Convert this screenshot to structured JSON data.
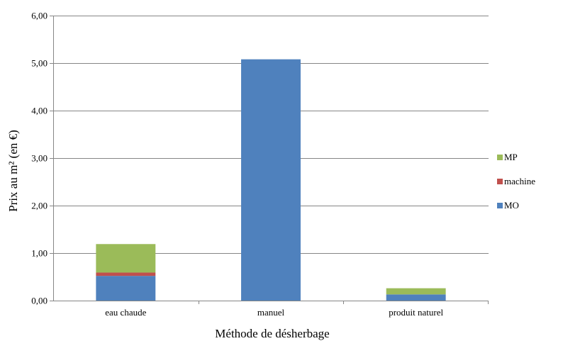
{
  "chart_data": {
    "type": "bar",
    "stacked": true,
    "title": "",
    "xlabel": "Méthode de désherbage",
    "ylabel": "Prix au m² (en €)",
    "ylim": [
      0,
      6
    ],
    "yticks": [
      "0,00",
      "1,00",
      "2,00",
      "3,00",
      "4,00",
      "5,00",
      "6,00"
    ],
    "grid": true,
    "legend_position": "right",
    "categories": [
      "eau chaude",
      "manuel",
      "produit naturel"
    ],
    "series": [
      {
        "name": "MO",
        "color": "#4f81bd",
        "values": [
          0.52,
          5.08,
          0.13
        ]
      },
      {
        "name": "machine",
        "color": "#c0504d",
        "values": [
          0.07,
          0,
          0
        ]
      },
      {
        "name": "MP",
        "color": "#9bbb59",
        "values": [
          0.6,
          0,
          0.13
        ]
      }
    ]
  }
}
